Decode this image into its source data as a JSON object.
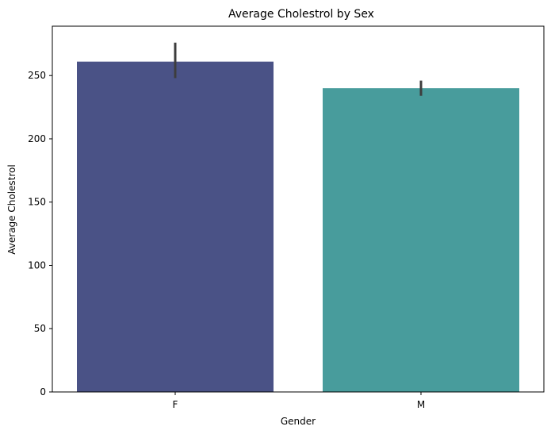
{
  "chart_data": {
    "type": "bar",
    "title": "Average Cholestrol by Sex",
    "xlabel": "Gender",
    "ylabel": "Average Cholestrol",
    "categories": [
      "F",
      "M"
    ],
    "values": [
      261,
      240
    ],
    "error_bars": [
      {
        "low": 248,
        "high": 276
      },
      {
        "low": 234,
        "high": 246
      }
    ],
    "colors": [
      "#4a5286",
      "#489c9c"
    ],
    "error_color": "#3d3d3d",
    "ylim": [
      0,
      289
    ],
    "yticks": [
      0,
      50,
      100,
      150,
      200,
      250
    ],
    "grid": false,
    "legend": "none"
  }
}
